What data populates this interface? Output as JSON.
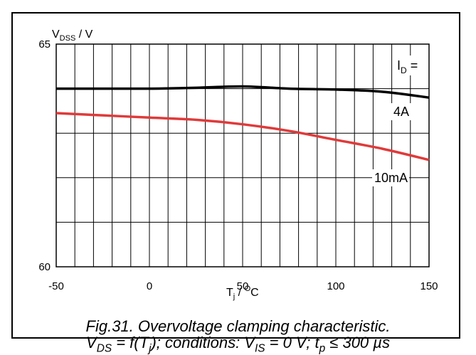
{
  "chart_data": {
    "type": "line",
    "xlim": [
      -50,
      150
    ],
    "ylim": [
      60,
      65
    ],
    "x_ticks": [
      "-50",
      "0",
      "50",
      "100",
      "150"
    ],
    "y_ticks": [
      "60",
      "65"
    ],
    "xlabel": {
      "main": "T",
      "sub": "j",
      "suffix": " / ",
      "sup": "O",
      "unit": "C"
    },
    "ylabel": {
      "main": "V",
      "sub": "DSS",
      "suffix": " / V"
    },
    "legend_title": {
      "main": "I",
      "sub": "D",
      "suffix": " ="
    },
    "grid": true,
    "series": [
      {
        "name": "4A",
        "color": "#000000",
        "x": [
          -50,
          -25,
          0,
          25,
          50,
          75,
          100,
          125,
          150
        ],
        "y": [
          64.0,
          64.0,
          64.0,
          64.02,
          64.05,
          64.0,
          63.98,
          63.93,
          63.8
        ]
      },
      {
        "name": "10mA",
        "color": "#e03a3a",
        "x": [
          -50,
          -25,
          0,
          25,
          50,
          75,
          100,
          125,
          150
        ],
        "y": [
          63.45,
          63.4,
          63.35,
          63.3,
          63.2,
          63.05,
          62.85,
          62.65,
          62.4
        ]
      }
    ]
  },
  "caption": {
    "line1": "Fig.31.   Overvoltage clamping characteristic.",
    "line2": {
      "p1": "V",
      "s1": "DS",
      "p2": " = f(T",
      "s2": "j",
      "p3": "); conditions: V",
      "s3": "IS",
      "p4": " = 0 V; t",
      "s4": "p",
      "p5": " ≤ 300 µs"
    }
  }
}
